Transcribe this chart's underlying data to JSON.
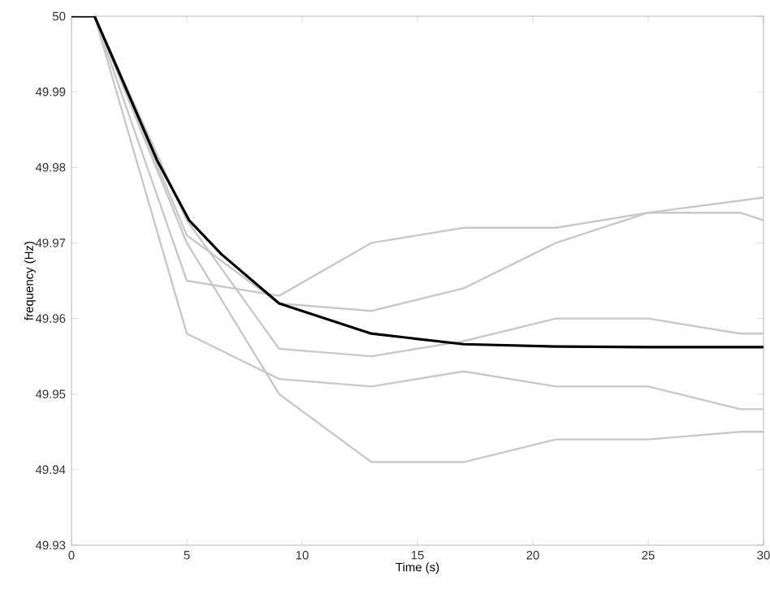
{
  "chart_data": {
    "type": "line",
    "xlabel": "Time (s)",
    "ylabel": "frequency (Hz)",
    "xlim": [
      0,
      30
    ],
    "ylim": [
      49.93,
      50
    ],
    "xticks": [
      0,
      5,
      10,
      15,
      20,
      25,
      30
    ],
    "yticks": [
      49.93,
      49.94,
      49.95,
      49.96,
      49.97,
      49.98,
      49.99,
      50
    ],
    "grid": false,
    "marker": "none",
    "line_style": "solid",
    "series": [
      {
        "color": "#c8c8c8",
        "x": [
          0,
          1,
          5,
          9,
          13,
          17,
          21,
          25,
          29,
          30
        ],
        "values": [
          50,
          50,
          49.965,
          49.963,
          49.97,
          49.972,
          49.972,
          49.974,
          49.974,
          49.973
        ]
      },
      {
        "color": "#c8c8c8",
        "x": [
          0,
          1,
          5,
          9,
          13,
          17,
          21,
          25,
          30
        ],
        "values": [
          50,
          50,
          49.971,
          49.962,
          49.961,
          49.964,
          49.97,
          49.974,
          49.976
        ]
      },
      {
        "color": "#c8c8c8",
        "x": [
          0,
          1,
          5,
          9,
          13,
          17,
          21,
          25,
          29,
          30
        ],
        "values": [
          50,
          50,
          49.973,
          49.956,
          49.955,
          49.957,
          49.96,
          49.96,
          49.958,
          49.958
        ]
      },
      {
        "color": "#c8c8c8",
        "x": [
          0,
          1,
          5,
          9,
          13,
          17,
          21,
          25,
          29,
          30
        ],
        "values": [
          50,
          50,
          49.958,
          49.952,
          49.951,
          49.953,
          49.951,
          49.951,
          49.948,
          49.948
        ]
      },
      {
        "color": "#c8c8c8",
        "x": [
          0,
          1,
          5,
          9,
          13,
          17,
          21,
          25,
          29,
          30
        ],
        "values": [
          50,
          50,
          49.97,
          49.95,
          49.941,
          49.941,
          49.944,
          49.944,
          49.945,
          49.945
        ]
      },
      {
        "color": "#000000",
        "x": [
          0,
          1,
          2,
          3.7,
          5.1,
          6.5,
          9,
          13,
          17,
          21,
          25,
          30
        ],
        "values": [
          50,
          50,
          49.993,
          49.981,
          49.973,
          49.9685,
          49.962,
          49.958,
          49.9566,
          49.9563,
          49.9562,
          49.9562
        ]
      }
    ]
  }
}
